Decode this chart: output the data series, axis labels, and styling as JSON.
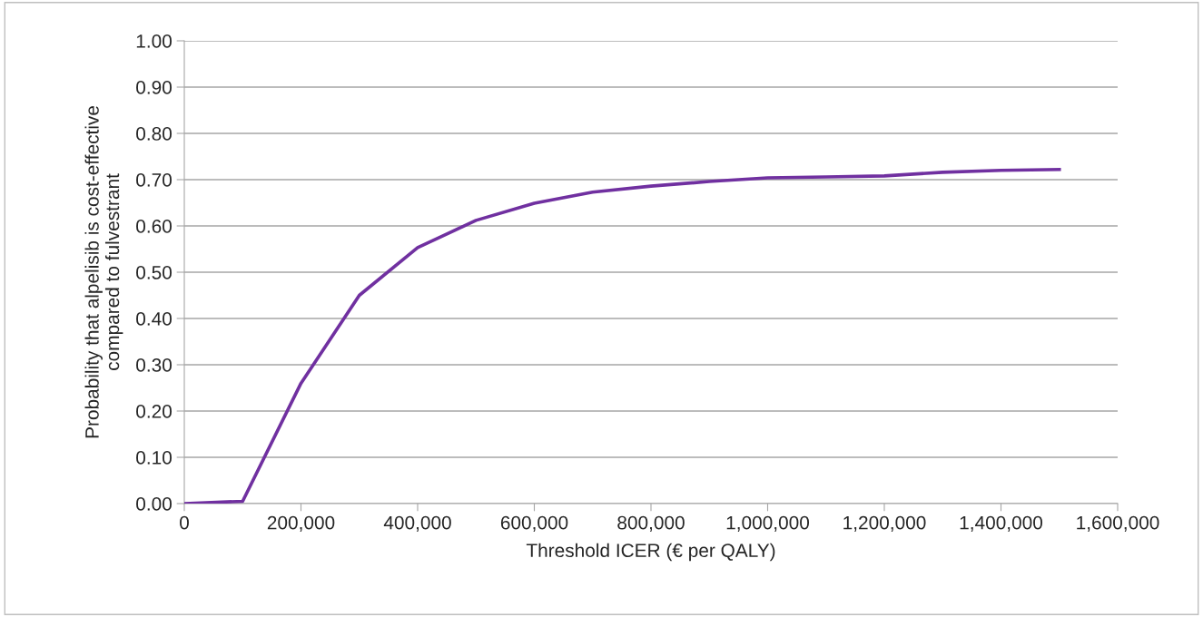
{
  "chart_data": {
    "type": "line",
    "xlabel": "Threshold ICER (€ per QALY)",
    "ylabel": "Probability that alpelisib is cost-effective\ncompared to fulvestrant",
    "x": [
      0,
      100000,
      200000,
      300000,
      400000,
      500000,
      600000,
      700000,
      800000,
      900000,
      1000000,
      1100000,
      1200000,
      1300000,
      1400000,
      1500000
    ],
    "series": [
      {
        "color": "#7030a0",
        "values": [
          0.0,
          0.005,
          0.26,
          0.45,
          0.553,
          0.612,
          0.649,
          0.673,
          0.686,
          0.696,
          0.704,
          0.706,
          0.708,
          0.716,
          0.72,
          0.722
        ]
      }
    ],
    "xlim": [
      0,
      1600000
    ],
    "xticks": [
      {
        "value": 0,
        "label": "0"
      },
      {
        "value": 200000,
        "label": "200,000"
      },
      {
        "value": 400000,
        "label": "400,000"
      },
      {
        "value": 600000,
        "label": "600,000"
      },
      {
        "value": 800000,
        "label": "800,000"
      },
      {
        "value": 1000000,
        "label": "1,000,000"
      },
      {
        "value": 1200000,
        "label": "1,200,000"
      },
      {
        "value": 1400000,
        "label": "1,400,000"
      },
      {
        "value": 1600000,
        "label": "1,600,000"
      }
    ],
    "ylim": [
      0,
      1
    ],
    "yticks": [
      {
        "value": 0,
        "label": "0.00"
      },
      {
        "value": 0.1,
        "label": "0.10"
      },
      {
        "value": 0.2,
        "label": "0.20"
      },
      {
        "value": 0.3,
        "label": "0.30"
      },
      {
        "value": 0.4,
        "label": "0.40"
      },
      {
        "value": 0.5,
        "label": "0.50"
      },
      {
        "value": 0.6,
        "label": "0.60"
      },
      {
        "value": 0.7,
        "label": "0.70"
      },
      {
        "value": 0.8,
        "label": "0.80"
      },
      {
        "value": 0.9,
        "label": "0.90"
      },
      {
        "value": 1,
        "label": "1.00"
      }
    ],
    "grid": "y",
    "marker": "none",
    "line_style": "solid",
    "legend": false
  }
}
